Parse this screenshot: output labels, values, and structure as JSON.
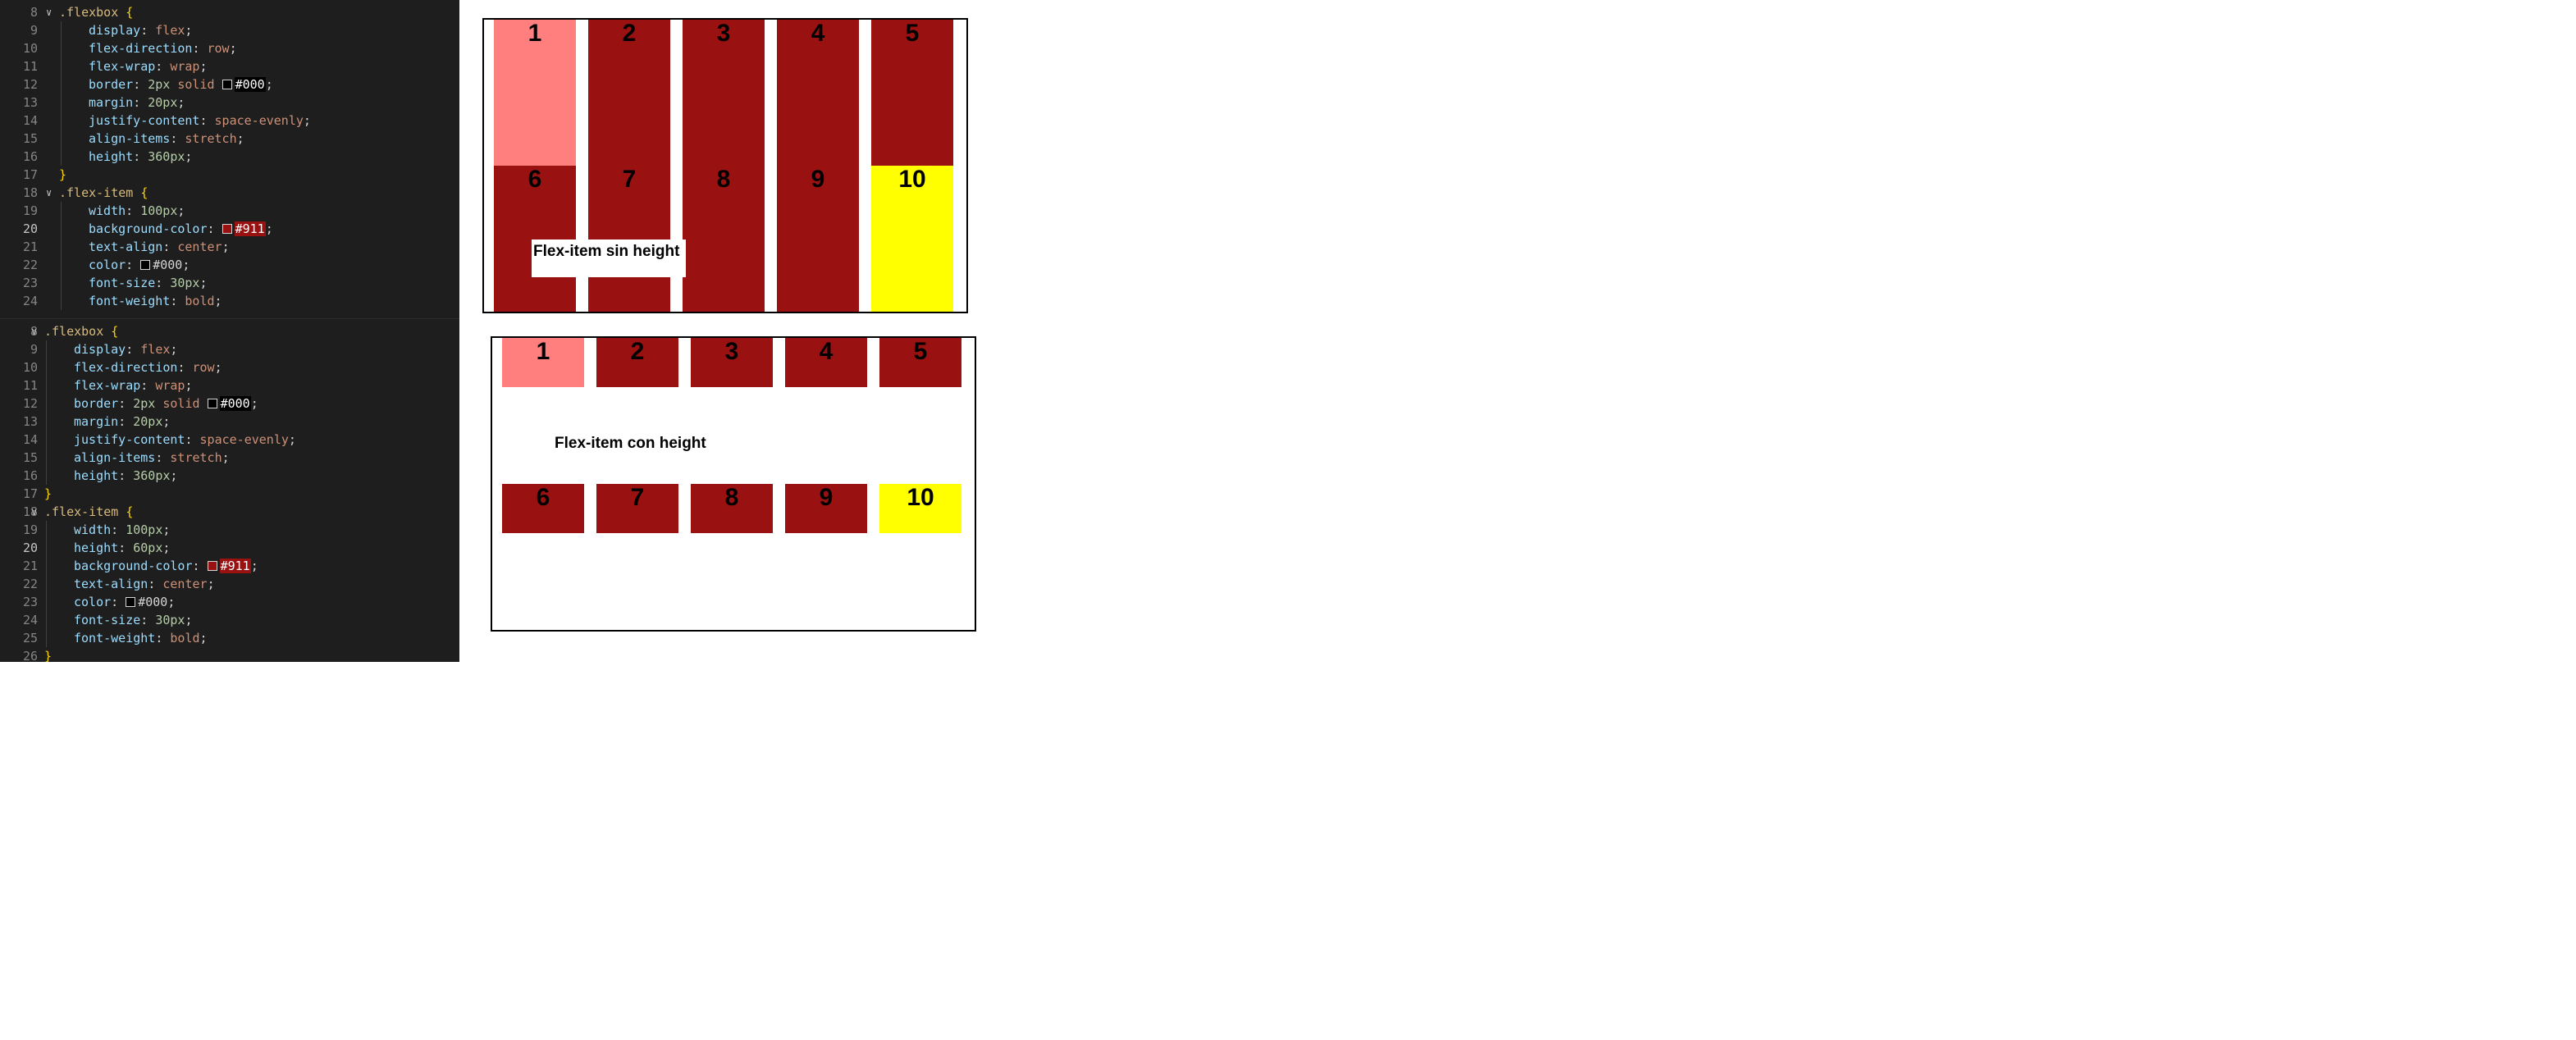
{
  "editor_top": {
    "lines": [
      {
        "n": "8",
        "fold": true,
        "code": [
          {
            "t": ".flexbox",
            "c": "sel"
          },
          {
            "t": " {",
            "c": "brace"
          }
        ]
      },
      {
        "n": "9",
        "code": [
          {
            "t": "display",
            "c": "prop"
          },
          {
            "t": ": ",
            "c": "punc"
          },
          {
            "t": "flex",
            "c": "val"
          },
          {
            "t": ";",
            "c": "punc"
          }
        ]
      },
      {
        "n": "10",
        "code": [
          {
            "t": "flex-direction",
            "c": "prop"
          },
          {
            "t": ": ",
            "c": "punc"
          },
          {
            "t": "row",
            "c": "val"
          },
          {
            "t": ";",
            "c": "punc"
          }
        ]
      },
      {
        "n": "11",
        "code": [
          {
            "t": "flex-wrap",
            "c": "prop"
          },
          {
            "t": ": ",
            "c": "punc"
          },
          {
            "t": "wrap",
            "c": "val"
          },
          {
            "t": ";",
            "c": "punc"
          }
        ]
      },
      {
        "n": "12",
        "code": [
          {
            "t": "border",
            "c": "prop"
          },
          {
            "t": ": ",
            "c": "punc"
          },
          {
            "t": "2px",
            "c": "num"
          },
          {
            "t": " solid ",
            "c": "val"
          },
          {
            "swatch": "#000000"
          },
          {
            "t": "#000",
            "c": "hex-black"
          },
          {
            "t": ";",
            "c": "punc"
          }
        ]
      },
      {
        "n": "13",
        "code": [
          {
            "t": "margin",
            "c": "prop"
          },
          {
            "t": ": ",
            "c": "punc"
          },
          {
            "t": "20px",
            "c": "num"
          },
          {
            "t": ";",
            "c": "punc"
          }
        ]
      },
      {
        "n": "14",
        "code": [
          {
            "t": "justify-content",
            "c": "prop"
          },
          {
            "t": ": ",
            "c": "punc"
          },
          {
            "t": "space-evenly",
            "c": "val"
          },
          {
            "t": ";",
            "c": "punc"
          }
        ]
      },
      {
        "n": "15",
        "code": [
          {
            "t": "align-items",
            "c": "prop"
          },
          {
            "t": ": ",
            "c": "punc"
          },
          {
            "t": "stretch",
            "c": "val"
          },
          {
            "t": ";",
            "c": "punc"
          }
        ]
      },
      {
        "n": "16",
        "code": [
          {
            "t": "height",
            "c": "prop"
          },
          {
            "t": ": ",
            "c": "punc"
          },
          {
            "t": "360px",
            "c": "num"
          },
          {
            "t": ";",
            "c": "punc"
          }
        ]
      },
      {
        "n": "17",
        "code": [
          {
            "t": "}",
            "c": "brace"
          }
        ],
        "outdent": true
      },
      {
        "n": "18",
        "fold": true,
        "code": [
          {
            "t": ".flex-item",
            "c": "sel"
          },
          {
            "t": " {",
            "c": "brace"
          }
        ]
      },
      {
        "n": "19",
        "code": [
          {
            "t": "width",
            "c": "prop"
          },
          {
            "t": ": ",
            "c": "punc"
          },
          {
            "t": "100px",
            "c": "num"
          },
          {
            "t": ";",
            "c": "punc"
          }
        ]
      },
      {
        "n": "20",
        "current": true,
        "code": [
          {
            "t": "background-color",
            "c": "prop"
          },
          {
            "t": ": ",
            "c": "punc"
          },
          {
            "swatch": "#991111"
          },
          {
            "t": "#911",
            "c": "hex-red"
          },
          {
            "t": ";",
            "c": "punc"
          }
        ]
      },
      {
        "n": "21",
        "code": [
          {
            "t": "text-align",
            "c": "prop"
          },
          {
            "t": ": ",
            "c": "punc"
          },
          {
            "t": "center",
            "c": "val"
          },
          {
            "t": ";",
            "c": "punc"
          }
        ]
      },
      {
        "n": "22",
        "code": [
          {
            "t": "color",
            "c": "prop"
          },
          {
            "t": ": ",
            "c": "punc"
          },
          {
            "swatch": "#000000"
          },
          {
            "t": "#000",
            "c": "punc"
          },
          {
            "t": ";",
            "c": "punc"
          }
        ]
      },
      {
        "n": "23",
        "code": [
          {
            "t": "font-size",
            "c": "prop"
          },
          {
            "t": ": ",
            "c": "punc"
          },
          {
            "t": "30px",
            "c": "num"
          },
          {
            "t": ";",
            "c": "punc"
          }
        ]
      },
      {
        "n": "24",
        "code": [
          {
            "t": "font-weight",
            "c": "prop"
          },
          {
            "t": ": ",
            "c": "punc"
          },
          {
            "t": "bold",
            "c": "val"
          },
          {
            "t": ";",
            "c": "punc"
          }
        ]
      }
    ]
  },
  "editor_bottom": {
    "lines": [
      {
        "n": "8",
        "fold": true,
        "code": [
          {
            "t": ".flexbox",
            "c": "sel"
          },
          {
            "t": " {",
            "c": "brace"
          }
        ]
      },
      {
        "n": "9",
        "code": [
          {
            "t": "display",
            "c": "prop"
          },
          {
            "t": ": ",
            "c": "punc"
          },
          {
            "t": "flex",
            "c": "val"
          },
          {
            "t": ";",
            "c": "punc"
          }
        ]
      },
      {
        "n": "10",
        "code": [
          {
            "t": "flex-direction",
            "c": "prop"
          },
          {
            "t": ": ",
            "c": "punc"
          },
          {
            "t": "row",
            "c": "val"
          },
          {
            "t": ";",
            "c": "punc"
          }
        ]
      },
      {
        "n": "11",
        "code": [
          {
            "t": "flex-wrap",
            "c": "prop"
          },
          {
            "t": ": ",
            "c": "punc"
          },
          {
            "t": "wrap",
            "c": "val"
          },
          {
            "t": ";",
            "c": "punc"
          }
        ]
      },
      {
        "n": "12",
        "code": [
          {
            "t": "border",
            "c": "prop"
          },
          {
            "t": ": ",
            "c": "punc"
          },
          {
            "t": "2px",
            "c": "num"
          },
          {
            "t": " solid ",
            "c": "val"
          },
          {
            "swatch": "#000000"
          },
          {
            "t": "#000",
            "c": "hex-black"
          },
          {
            "t": ";",
            "c": "punc"
          }
        ]
      },
      {
        "n": "13",
        "code": [
          {
            "t": "margin",
            "c": "prop"
          },
          {
            "t": ": ",
            "c": "punc"
          },
          {
            "t": "20px",
            "c": "num"
          },
          {
            "t": ";",
            "c": "punc"
          }
        ]
      },
      {
        "n": "14",
        "code": [
          {
            "t": "justify-content",
            "c": "prop"
          },
          {
            "t": ": ",
            "c": "punc"
          },
          {
            "t": "space-evenly",
            "c": "val"
          },
          {
            "t": ";",
            "c": "punc"
          }
        ]
      },
      {
        "n": "15",
        "code": [
          {
            "t": "align-items",
            "c": "prop"
          },
          {
            "t": ": ",
            "c": "punc"
          },
          {
            "t": "stretch",
            "c": "val"
          },
          {
            "t": ";",
            "c": "punc"
          }
        ]
      },
      {
        "n": "16",
        "code": [
          {
            "t": "height",
            "c": "prop"
          },
          {
            "t": ": ",
            "c": "punc"
          },
          {
            "t": "360px",
            "c": "num"
          },
          {
            "t": ";",
            "c": "punc"
          }
        ]
      },
      {
        "n": "17",
        "code": [
          {
            "t": "}",
            "c": "brace"
          }
        ],
        "outdent": true
      },
      {
        "n": "18",
        "fold": true,
        "code": [
          {
            "t": ".flex-item",
            "c": "sel"
          },
          {
            "t": " {",
            "c": "brace"
          }
        ]
      },
      {
        "n": "19",
        "code": [
          {
            "t": "width",
            "c": "prop"
          },
          {
            "t": ": ",
            "c": "punc"
          },
          {
            "t": "100px",
            "c": "num"
          },
          {
            "t": ";",
            "c": "punc"
          }
        ]
      },
      {
        "n": "20",
        "current": true,
        "code": [
          {
            "t": "height",
            "c": "prop"
          },
          {
            "t": ": ",
            "c": "punc"
          },
          {
            "t": "60px",
            "c": "num"
          },
          {
            "t": ";",
            "c": "punc"
          }
        ]
      },
      {
        "n": "21",
        "code": [
          {
            "t": "background-color",
            "c": "prop"
          },
          {
            "t": ": ",
            "c": "punc"
          },
          {
            "swatch": "#991111"
          },
          {
            "t": "#911",
            "c": "hex-red"
          },
          {
            "t": ";",
            "c": "punc"
          }
        ]
      },
      {
        "n": "22",
        "code": [
          {
            "t": "text-align",
            "c": "prop"
          },
          {
            "t": ": ",
            "c": "punc"
          },
          {
            "t": "center",
            "c": "val"
          },
          {
            "t": ";",
            "c": "punc"
          }
        ]
      },
      {
        "n": "23",
        "code": [
          {
            "t": "color",
            "c": "prop"
          },
          {
            "t": ": ",
            "c": "punc"
          },
          {
            "swatch": "#000000"
          },
          {
            "t": "#000",
            "c": "punc"
          },
          {
            "t": ";",
            "c": "punc"
          }
        ]
      },
      {
        "n": "24",
        "code": [
          {
            "t": "font-size",
            "c": "prop"
          },
          {
            "t": ": ",
            "c": "punc"
          },
          {
            "t": "30px",
            "c": "num"
          },
          {
            "t": ";",
            "c": "punc"
          }
        ]
      },
      {
        "n": "25",
        "code": [
          {
            "t": "font-weight",
            "c": "prop"
          },
          {
            "t": ": ",
            "c": "punc"
          },
          {
            "t": "bold",
            "c": "val"
          },
          {
            "t": ";",
            "c": "punc"
          }
        ]
      },
      {
        "n": "26",
        "code": [
          {
            "t": "}",
            "c": "brace"
          }
        ],
        "outdent": true
      }
    ]
  },
  "preview_top": {
    "caption": "Flex-item sin height",
    "items": [
      {
        "label": "1",
        "color": "#ff7f7f"
      },
      {
        "label": "2",
        "color": "#991111"
      },
      {
        "label": "3",
        "color": "#991111"
      },
      {
        "label": "4",
        "color": "#991111"
      },
      {
        "label": "5",
        "color": "#991111"
      },
      {
        "label": "6",
        "color": "#991111"
      },
      {
        "label": "7",
        "color": "#991111"
      },
      {
        "label": "8",
        "color": "#991111"
      },
      {
        "label": "9",
        "color": "#991111"
      },
      {
        "label": "10",
        "color": "#ffff00"
      }
    ]
  },
  "preview_bottom": {
    "caption": "Flex-item con height",
    "items": [
      {
        "label": "1",
        "color": "#ff7f7f"
      },
      {
        "label": "2",
        "color": "#991111"
      },
      {
        "label": "3",
        "color": "#991111"
      },
      {
        "label": "4",
        "color": "#991111"
      },
      {
        "label": "5",
        "color": "#991111"
      },
      {
        "label": "6",
        "color": "#991111"
      },
      {
        "label": "7",
        "color": "#991111"
      },
      {
        "label": "8",
        "color": "#991111"
      },
      {
        "label": "9",
        "color": "#991111"
      },
      {
        "label": "10",
        "color": "#ffff00"
      }
    ]
  }
}
